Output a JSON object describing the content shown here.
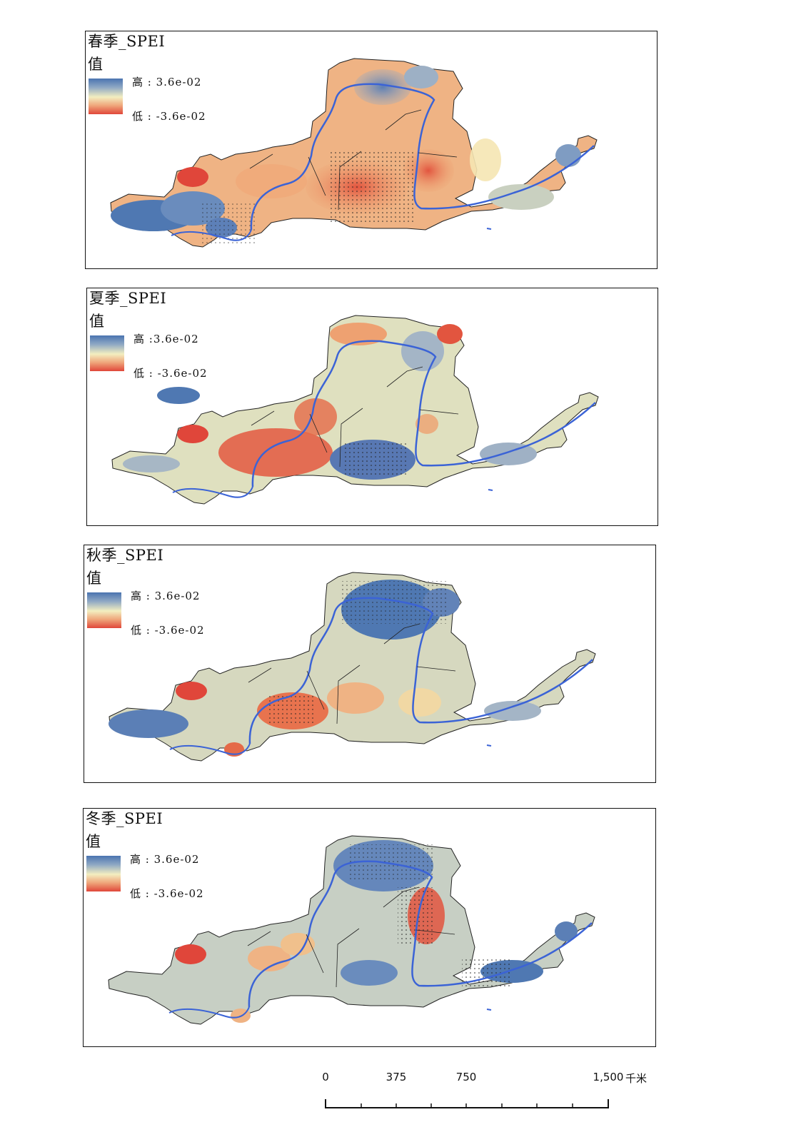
{
  "panels": [
    {
      "title": "春季_SPEI",
      "legend_title": "值",
      "high": "高 : 3.6e-02",
      "low": "低 : -3.6e-02",
      "tone": "spring"
    },
    {
      "title": "夏季_SPEI",
      "legend_title": "值",
      "high": "高 :3.6e-02",
      "low": "低 : -3.6e-02",
      "tone": "summer"
    },
    {
      "title": "秋季_SPEI",
      "legend_title": "值",
      "high": "高 : 3.6e-02",
      "low": "低 : -3.6e-02",
      "tone": "autumn"
    },
    {
      "title": "冬季_SPEI",
      "legend_title": "值",
      "high": "高 : 3.6e-02",
      "low": "低 : -3.6e-02",
      "tone": "winter"
    }
  ],
  "colors": {
    "high": "#4a74b0",
    "mid": "#f3eec0",
    "low": "#e0463a",
    "river": "#3b63d6"
  },
  "scalebar": {
    "ticks": [
      "0",
      "375",
      "750",
      "1,500"
    ],
    "unit": "千米"
  }
}
